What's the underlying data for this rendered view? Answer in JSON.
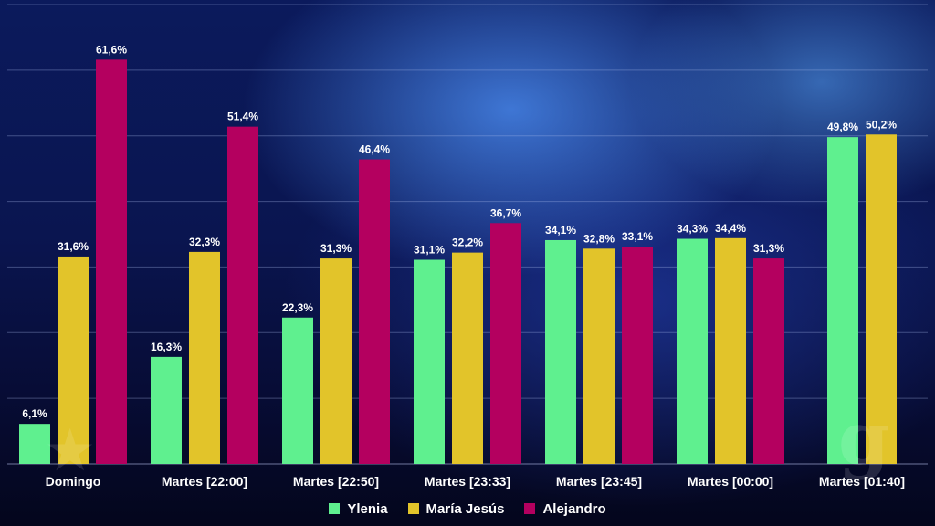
{
  "chart_data": {
    "type": "bar",
    "title": "",
    "xlabel": "",
    "ylabel": "",
    "ylim": [
      0,
      70
    ],
    "grid": true,
    "legend_position": "bottom",
    "categories": [
      "Domingo",
      "Martes [22:00]",
      "Martes [22:50]",
      "Martes [23:33]",
      "Martes [23:45]",
      "Martes [00:00]",
      "Martes [01:40]"
    ],
    "series": [
      {
        "name": "Ylenia",
        "color": "#5ff08f",
        "values": [
          6.1,
          16.3,
          22.3,
          31.1,
          34.1,
          34.3,
          49.8
        ],
        "labels": [
          "6,1%",
          "16,3%",
          "22,3%",
          "31,1%",
          "34,1%",
          "34,3%",
          "49,8%"
        ]
      },
      {
        "name": "María Jesús",
        "color": "#e2c42a",
        "values": [
          31.6,
          32.3,
          31.3,
          32.2,
          32.8,
          34.4,
          50.2
        ],
        "labels": [
          "31,6%",
          "32,3%",
          "31,3%",
          "32,2%",
          "32,8%",
          "34,4%",
          "50,2%"
        ]
      },
      {
        "name": "Alejandro",
        "color": "#b4005f",
        "values": [
          61.6,
          51.4,
          46.4,
          36.7,
          33.1,
          31.3,
          null
        ],
        "labels": [
          "61,6%",
          "51,4%",
          "46,4%",
          "36,7%",
          "33,1%",
          "31,3%",
          null
        ]
      }
    ]
  }
}
